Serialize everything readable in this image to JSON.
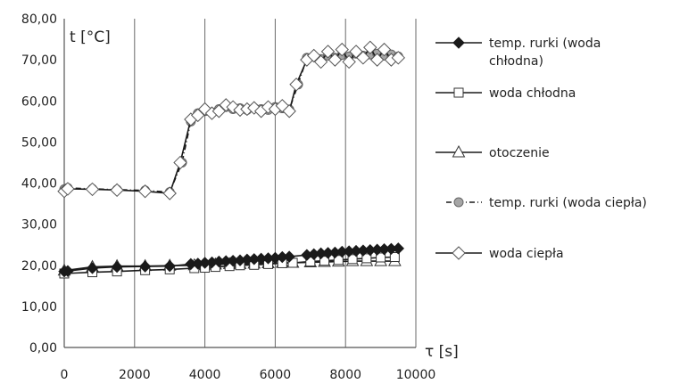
{
  "chart_data": {
    "type": "line",
    "xlabel": "τ [s]",
    "ylabel": "t [°C]",
    "xlim": [
      0,
      10000
    ],
    "ylim": [
      0,
      80
    ],
    "x_ticks": [
      "0",
      "2000",
      "4000",
      "6000",
      "8000",
      "10000"
    ],
    "y_ticks": [
      "0,00",
      "10,00",
      "20,00",
      "30,00",
      "40,00",
      "50,00",
      "60,00",
      "70,00",
      "80,00"
    ],
    "grid": "vertical",
    "legend_position": "right",
    "series": [
      {
        "name": "temp. rurki (woda chłodna)",
        "marker": "filled-diamond",
        "line": "solid",
        "x": [
          0,
          100,
          800,
          1500,
          2300,
          3000,
          3600,
          3800,
          4000,
          4200,
          4400,
          4600,
          4800,
          5000,
          5200,
          5400,
          5600,
          5800,
          6000,
          6200,
          6400,
          6900,
          7100,
          7300,
          7500,
          7700,
          7900,
          8100,
          8300,
          8500,
          8700,
          8900,
          9100,
          9300,
          9500
        ],
        "y": [
          18.5,
          18.6,
          19.3,
          19.6,
          19.7,
          19.8,
          20.3,
          20.4,
          20.6,
          20.7,
          20.9,
          21.0,
          21.1,
          21.2,
          21.4,
          21.5,
          21.6,
          21.7,
          21.8,
          22.0,
          22.1,
          22.5,
          22.7,
          22.9,
          23.0,
          23.1,
          23.3,
          23.4,
          23.5,
          23.6,
          23.7,
          23.8,
          23.9,
          24.0,
          24.1
        ]
      },
      {
        "name": "woda chłodna",
        "marker": "open-square",
        "line": "solid",
        "x": [
          0,
          800,
          1500,
          2300,
          3000,
          3700,
          4000,
          4300,
          4700,
          5000,
          5400,
          5800,
          6200,
          6500,
          7000,
          7400,
          7800,
          8200,
          8600,
          9000,
          9400
        ],
        "y": [
          18.0,
          18.3,
          18.5,
          18.8,
          19.0,
          19.3,
          19.4,
          19.6,
          19.8,
          20.0,
          20.1,
          20.3,
          20.5,
          20.6,
          20.9,
          21.1,
          21.3,
          21.5,
          21.7,
          21.9,
          22.0
        ]
      },
      {
        "name": "otoczenie",
        "marker": "open-triangle",
        "line": "solid",
        "x": [
          0,
          800,
          1500,
          2300,
          3000,
          3700,
          4000,
          4300,
          4700,
          5000,
          5400,
          5800,
          6200,
          6500,
          7000,
          7400,
          7800,
          8200,
          8600,
          9000,
          9400
        ],
        "y": [
          18.7,
          19.6,
          19.8,
          19.8,
          19.9,
          20.0,
          20.1,
          20.2,
          20.3,
          20.3,
          20.4,
          20.5,
          20.6,
          20.6,
          20.7,
          20.8,
          20.9,
          21.0,
          21.0,
          21.0,
          21.0
        ]
      },
      {
        "name": "temp. rurki (woda ciepła)",
        "marker": "filled-circle",
        "line": "dash-dot",
        "x": [
          0,
          100,
          800,
          1500,
          2300,
          3000,
          3350,
          3600,
          3800,
          4000,
          4200,
          4400,
          4600,
          4800,
          5000,
          5200,
          5400,
          5600,
          5800,
          6000,
          6200,
          6400,
          6650,
          6900,
          7100,
          7300,
          7500,
          7700,
          7900,
          8100,
          8300,
          8500,
          8700,
          8900,
          9100,
          9300,
          9500
        ],
        "y": [
          38.5,
          38.8,
          38.6,
          38.4,
          38.2,
          37.8,
          45.0,
          55.0,
          57.0,
          57.5,
          57.2,
          58.0,
          58.5,
          58.0,
          58.2,
          57.8,
          58.3,
          58.0,
          57.8,
          58.5,
          58.2,
          57.9,
          64.0,
          70.5,
          70.8,
          70.2,
          71.0,
          70.5,
          71.2,
          70.8,
          71.5,
          71.0,
          71.3,
          71.5,
          71.0,
          71.3,
          70.8
        ]
      },
      {
        "name": "woda ciepła",
        "marker": "open-diamond",
        "line": "solid",
        "x": [
          0,
          100,
          800,
          1500,
          2300,
          3000,
          3300,
          3600,
          3800,
          4000,
          4200,
          4400,
          4600,
          4800,
          5000,
          5200,
          5400,
          5600,
          5800,
          6000,
          6200,
          6400,
          6600,
          6900,
          7100,
          7300,
          7500,
          7700,
          7900,
          8100,
          8300,
          8500,
          8700,
          8900,
          9100,
          9300,
          9500
        ],
        "y": [
          38.0,
          38.6,
          38.5,
          38.3,
          38.0,
          37.5,
          45.0,
          55.5,
          56.5,
          58.0,
          57.0,
          57.5,
          59.0,
          58.5,
          57.8,
          58.0,
          58.3,
          57.5,
          58.5,
          58.0,
          58.8,
          57.5,
          64.0,
          70.0,
          71.0,
          69.5,
          72.0,
          70.0,
          72.5,
          69.5,
          72.0,
          70.5,
          73.0,
          70.0,
          72.5,
          70.0,
          70.5
        ]
      }
    ]
  }
}
